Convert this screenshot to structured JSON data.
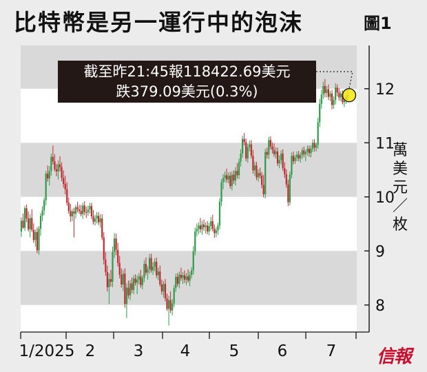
{
  "title": "比特幣是另一運行中的泡沫",
  "figure_label": "圖1",
  "unit_label": "萬美元／枚",
  "annotation": {
    "line1": "截至昨21:45報118422.69美元",
    "line2": "跌379.09美元(0.3%)"
  },
  "logo": "信報",
  "colors": {
    "up": "#2e9a48",
    "down": "#c0282d",
    "band": "#d9d9d9",
    "plot_bg": "#ffffff",
    "highlight": "#f7e600"
  },
  "chart_data": {
    "type": "candlestick",
    "title": "比特幣是另一運行中的泡沫",
    "ylabel": "萬美元／枚",
    "ylim": [
      7.5,
      12.8
    ],
    "y_ticks": [
      8,
      9,
      10,
      11,
      12
    ],
    "x_ticks": [
      "1/2025",
      "2",
      "3",
      "4",
      "5",
      "6",
      "7"
    ],
    "latest_close_usd": 118422.69,
    "latest_change_usd": -379.09,
    "latest_change_pct": -0.3,
    "series": [
      {
        "name": "",
        "values": [
          [
            9.36,
            9.62,
            9.26,
            9.56
          ],
          [
            9.56,
            9.69,
            9.41,
            9.43
          ],
          [
            9.43,
            9.83,
            9.37,
            9.79
          ],
          [
            9.79,
            9.86,
            9.53,
            9.6
          ],
          [
            9.6,
            9.73,
            9.36,
            9.4
          ],
          [
            9.4,
            9.68,
            9.25,
            9.61
          ],
          [
            9.61,
            9.77,
            9.35,
            9.39
          ],
          [
            9.39,
            9.51,
            9.15,
            9.2
          ],
          [
            9.2,
            9.4,
            9.08,
            9.35
          ],
          [
            9.35,
            9.44,
            8.96,
            9.01
          ],
          [
            9.01,
            9.46,
            8.93,
            9.41
          ],
          [
            9.41,
            9.7,
            9.28,
            9.65
          ],
          [
            9.65,
            9.83,
            9.55,
            9.75
          ],
          [
            9.75,
            9.99,
            9.66,
            9.94
          ],
          [
            9.94,
            10.48,
            9.84,
            10.43
          ],
          [
            10.43,
            10.58,
            10.28,
            10.34
          ],
          [
            10.34,
            10.57,
            10.21,
            10.48
          ],
          [
            10.48,
            10.8,
            10.39,
            10.74
          ],
          [
            10.74,
            10.95,
            10.6,
            10.66
          ],
          [
            10.66,
            10.79,
            10.47,
            10.51
          ],
          [
            10.51,
            10.61,
            10.38,
            10.47
          ],
          [
            10.47,
            10.67,
            10.32,
            10.6
          ],
          [
            10.6,
            10.75,
            10.47,
            10.55
          ],
          [
            10.55,
            10.64,
            10.29,
            10.35
          ],
          [
            10.35,
            10.49,
            10.17,
            10.24
          ],
          [
            10.24,
            10.39,
            10.05,
            10.14
          ],
          [
            10.14,
            10.27,
            9.84,
            9.89
          ],
          [
            9.89,
            9.99,
            9.69,
            9.74
          ],
          [
            9.74,
            9.87,
            9.54,
            9.64
          ],
          [
            9.64,
            9.78,
            9.55,
            9.73
          ],
          [
            9.73,
            9.8,
            9.25,
            9.69
          ],
          [
            9.69,
            9.85,
            9.6,
            9.81
          ],
          [
            9.81,
            9.91,
            9.71,
            9.77
          ],
          [
            9.77,
            9.85,
            9.69,
            9.74
          ],
          [
            9.74,
            9.85,
            9.64,
            9.68
          ],
          [
            9.68,
            9.89,
            9.59,
            9.84
          ],
          [
            9.84,
            9.92,
            9.66,
            9.72
          ],
          [
            9.72,
            9.82,
            9.61,
            9.71
          ],
          [
            9.71,
            9.84,
            9.65,
            9.77
          ],
          [
            9.77,
            9.89,
            9.69,
            9.83
          ],
          [
            9.83,
            9.89,
            9.59,
            9.64
          ],
          [
            9.64,
            9.76,
            9.49,
            9.54
          ],
          [
            9.54,
            9.67,
            9.47,
            9.6
          ],
          [
            9.6,
            9.72,
            9.51,
            9.65
          ],
          [
            9.65,
            9.72,
            9.48,
            9.53
          ],
          [
            9.53,
            9.68,
            9.43,
            9.6
          ],
          [
            9.6,
            9.68,
            9.2,
            9.25
          ],
          [
            9.25,
            9.35,
            8.75,
            8.84
          ],
          [
            8.84,
            8.98,
            8.54,
            8.61
          ],
          [
            8.61,
            8.73,
            8.25,
            8.33
          ],
          [
            8.33,
            8.59,
            8.02,
            8.48
          ],
          [
            8.48,
            8.65,
            8.34,
            8.43
          ],
          [
            8.43,
            9.08,
            8.33,
            8.98
          ],
          [
            8.98,
            9.33,
            8.87,
            9.23
          ],
          [
            9.23,
            9.32,
            8.92,
            9.02
          ],
          [
            9.02,
            9.15,
            8.71,
            8.78
          ],
          [
            8.78,
            8.91,
            8.49,
            8.56
          ],
          [
            8.56,
            8.68,
            8.32,
            8.38
          ],
          [
            8.38,
            8.65,
            8.26,
            8.58
          ],
          [
            8.58,
            8.68,
            7.95,
            8.02
          ],
          [
            8.02,
            8.4,
            7.76,
            8.32
          ],
          [
            8.32,
            8.45,
            8.12,
            8.18
          ],
          [
            8.18,
            8.46,
            8.09,
            8.4
          ],
          [
            8.4,
            8.51,
            8.22,
            8.28
          ],
          [
            8.28,
            8.55,
            8.2,
            8.49
          ],
          [
            8.49,
            8.57,
            8.36,
            8.41
          ],
          [
            8.41,
            8.55,
            8.2,
            8.47
          ],
          [
            8.47,
            8.59,
            8.38,
            8.53
          ],
          [
            8.53,
            8.65,
            8.32,
            8.37
          ],
          [
            8.37,
            8.55,
            8.29,
            8.5
          ],
          [
            8.5,
            8.83,
            8.42,
            8.76
          ],
          [
            8.76,
            8.88,
            8.55,
            8.6
          ],
          [
            8.6,
            8.72,
            8.47,
            8.66
          ],
          [
            8.66,
            8.94,
            8.58,
            8.87
          ],
          [
            8.87,
            8.95,
            8.6,
            8.64
          ],
          [
            8.64,
            8.79,
            8.56,
            8.71
          ],
          [
            8.71,
            8.86,
            8.62,
            8.8
          ],
          [
            8.8,
            8.88,
            8.5,
            8.55
          ],
          [
            8.55,
            8.69,
            8.46,
            8.62
          ],
          [
            8.62,
            8.73,
            8.34,
            8.38
          ],
          [
            8.38,
            8.47,
            8.19,
            8.25
          ],
          [
            8.25,
            8.44,
            8.14,
            8.39
          ],
          [
            8.39,
            8.48,
            8.07,
            8.12
          ],
          [
            8.12,
            8.21,
            7.89,
            7.93
          ],
          [
            7.93,
            8.17,
            7.62,
            8.09
          ],
          [
            8.09,
            8.25,
            7.85,
            7.9
          ],
          [
            7.9,
            8.11,
            7.81,
            8.03
          ],
          [
            8.03,
            8.37,
            7.96,
            8.31
          ],
          [
            8.31,
            8.58,
            8.24,
            8.52
          ],
          [
            8.52,
            8.59,
            8.34,
            8.39
          ],
          [
            8.39,
            8.62,
            8.31,
            8.56
          ],
          [
            8.56,
            8.69,
            8.45,
            8.5
          ],
          [
            8.5,
            8.61,
            8.39,
            8.55
          ],
          [
            8.55,
            8.64,
            8.41,
            8.47
          ],
          [
            8.47,
            8.59,
            8.37,
            8.53
          ],
          [
            8.53,
            8.66,
            8.41,
            8.45
          ],
          [
            8.45,
            8.62,
            8.35,
            8.56
          ],
          [
            8.56,
            8.7,
            8.49,
            8.64
          ],
          [
            8.64,
            9.09,
            8.56,
            8.99
          ],
          [
            8.99,
            9.43,
            8.92,
            9.36
          ],
          [
            9.36,
            9.51,
            9.27,
            9.41
          ],
          [
            9.41,
            9.53,
            9.31,
            9.47
          ],
          [
            9.47,
            9.61,
            9.34,
            9.4
          ],
          [
            9.4,
            9.56,
            9.3,
            9.49
          ],
          [
            9.49,
            9.58,
            9.37,
            9.44
          ],
          [
            9.44,
            9.53,
            9.32,
            9.47
          ],
          [
            9.47,
            9.55,
            9.31,
            9.36
          ],
          [
            9.36,
            9.52,
            9.29,
            9.46
          ],
          [
            9.46,
            9.63,
            9.38,
            9.55
          ],
          [
            9.55,
            9.67,
            9.36,
            9.41
          ],
          [
            9.41,
            9.49,
            9.24,
            9.33
          ],
          [
            9.33,
            9.44,
            9.25,
            9.38
          ],
          [
            9.38,
            9.52,
            9.3,
            9.47
          ],
          [
            9.47,
            9.98,
            9.4,
            9.91
          ],
          [
            9.91,
            10.33,
            9.83,
            10.27
          ],
          [
            10.27,
            10.42,
            10.14,
            10.35
          ],
          [
            10.35,
            10.47,
            10.27,
            10.4
          ],
          [
            10.4,
            10.52,
            10.26,
            10.32
          ],
          [
            10.32,
            10.45,
            10.25,
            10.39
          ],
          [
            10.39,
            10.46,
            10.15,
            10.2
          ],
          [
            10.2,
            10.47,
            10.12,
            10.41
          ],
          [
            10.41,
            10.49,
            10.24,
            10.3
          ],
          [
            10.3,
            10.55,
            10.21,
            10.48
          ],
          [
            10.48,
            10.62,
            10.34,
            10.4
          ],
          [
            10.4,
            10.71,
            10.33,
            10.65
          ],
          [
            10.65,
            10.88,
            10.56,
            10.8
          ],
          [
            10.8,
            11.13,
            10.72,
            11.07
          ],
          [
            11.07,
            11.18,
            10.95,
            11.01
          ],
          [
            11.01,
            11.08,
            10.66,
            10.71
          ],
          [
            10.71,
            10.98,
            10.63,
            10.92
          ],
          [
            10.92,
            11.04,
            10.84,
            10.97
          ],
          [
            10.97,
            11.05,
            10.71,
            10.76
          ],
          [
            10.76,
            10.87,
            10.43,
            10.49
          ],
          [
            10.49,
            10.65,
            10.39,
            10.58
          ],
          [
            10.58,
            10.65,
            10.31,
            10.36
          ],
          [
            10.36,
            10.51,
            10.28,
            10.44
          ],
          [
            10.44,
            10.54,
            10.34,
            10.39
          ],
          [
            10.39,
            10.46,
            10.16,
            10.22
          ],
          [
            10.22,
            10.41,
            9.99,
            10.05
          ],
          [
            10.05,
            10.89,
            9.97,
            10.83
          ],
          [
            10.83,
            10.91,
            10.71,
            10.78
          ],
          [
            10.78,
            11.11,
            10.7,
            11.05
          ],
          [
            11.05,
            11.12,
            10.88,
            10.93
          ],
          [
            10.93,
            11.01,
            10.8,
            10.87
          ],
          [
            10.87,
            10.99,
            10.74,
            10.79
          ],
          [
            10.79,
            10.92,
            10.71,
            10.84
          ],
          [
            10.84,
            10.91,
            10.57,
            10.62
          ],
          [
            10.62,
            10.77,
            10.53,
            10.68
          ],
          [
            10.68,
            10.86,
            10.6,
            10.8
          ],
          [
            10.8,
            10.88,
            10.48,
            10.53
          ],
          [
            10.53,
            10.64,
            10.35,
            10.42
          ],
          [
            10.42,
            10.51,
            10.17,
            10.23
          ],
          [
            10.23,
            10.32,
            9.83,
            9.9
          ],
          [
            9.9,
            10.47,
            9.84,
            10.41
          ],
          [
            10.41,
            10.82,
            10.34,
            10.76
          ],
          [
            10.76,
            10.84,
            10.6,
            10.66
          ],
          [
            10.66,
            10.78,
            10.61,
            10.73
          ],
          [
            10.73,
            10.84,
            10.66,
            10.78
          ],
          [
            10.78,
            10.85,
            10.66,
            10.71
          ],
          [
            10.71,
            10.82,
            10.63,
            10.77
          ],
          [
            10.77,
            10.91,
            10.7,
            10.86
          ],
          [
            10.86,
            10.93,
            10.73,
            10.79
          ],
          [
            10.79,
            10.87,
            10.66,
            10.83
          ],
          [
            10.83,
            10.95,
            10.76,
            10.89
          ],
          [
            10.89,
            10.95,
            10.74,
            10.81
          ],
          [
            10.81,
            10.95,
            10.73,
            10.89
          ],
          [
            10.89,
            11.06,
            10.83,
            11.0
          ],
          [
            11.0,
            11.07,
            10.84,
            10.91
          ],
          [
            10.91,
            11.0,
            10.84,
            10.96
          ],
          [
            10.96,
            11.46,
            10.89,
            11.38
          ],
          [
            11.38,
            11.81,
            11.29,
            11.72
          ],
          [
            11.72,
            11.98,
            11.63,
            11.89
          ],
          [
            11.89,
            12.13,
            11.81,
            12.05
          ],
          [
            12.05,
            12.18,
            11.84,
            11.92
          ],
          [
            11.92,
            12.05,
            11.84,
            11.99
          ],
          [
            11.99,
            12.08,
            11.79,
            11.85
          ],
          [
            11.85,
            11.96,
            11.77,
            11.91
          ],
          [
            11.91,
            11.98,
            11.62,
            11.7
          ],
          [
            11.7,
            11.86,
            11.63,
            11.79
          ],
          [
            11.79,
            12.1,
            11.71,
            12.02
          ],
          [
            12.02,
            12.08,
            11.86,
            11.93
          ],
          [
            11.93,
            12.01,
            11.78,
            11.84
          ],
          [
            11.84,
            11.96,
            11.77,
            11.91
          ],
          [
            11.91,
            11.97,
            11.71,
            11.75
          ],
          [
            11.75,
            11.83,
            11.66,
            11.78
          ],
          [
            11.78,
            11.89,
            11.72,
            11.86
          ],
          [
            11.86,
            11.98,
            11.79,
            11.88
          ]
        ]
      }
    ]
  }
}
